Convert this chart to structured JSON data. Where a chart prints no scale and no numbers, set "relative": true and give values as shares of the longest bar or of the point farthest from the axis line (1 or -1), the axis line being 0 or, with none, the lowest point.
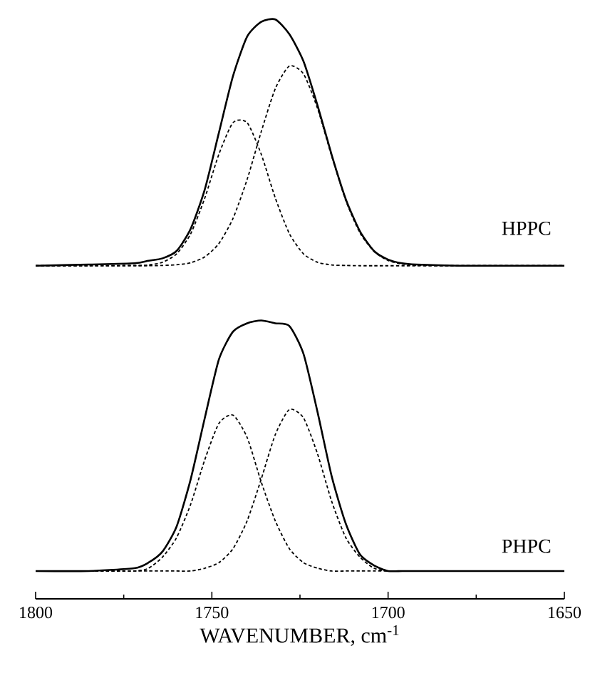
{
  "chart_data": [
    {
      "type": "line",
      "relative": true,
      "tick_labels": false,
      "xlim": [
        1800,
        1650
      ],
      "annotations": [
        "HPPC"
      ],
      "x": [
        1800,
        1785,
        1772,
        1768,
        1764,
        1760,
        1756,
        1752,
        1748,
        1744,
        1740,
        1736,
        1732,
        1728,
        1724,
        1720,
        1716,
        1712,
        1708,
        1704,
        1700,
        1696,
        1692,
        1680,
        1665,
        1650
      ],
      "series": [
        {
          "color": "#000000",
          "line_style": "solid",
          "values": [
            0,
            0.005,
            0.01,
            0.02,
            0.03,
            0.06,
            0.15,
            0.31,
            0.54,
            0.77,
            0.93,
            0.99,
            1.0,
            0.94,
            0.83,
            0.65,
            0.45,
            0.27,
            0.14,
            0.06,
            0.025,
            0.01,
            0.005,
            0,
            0,
            0
          ]
        },
        {
          "color": "#000000",
          "line_style": "dashed",
          "values": [
            0,
            0,
            0.001,
            0.003,
            0.014,
            0.048,
            0.13,
            0.275,
            0.453,
            0.581,
            0.581,
            0.453,
            0.275,
            0.13,
            0.048,
            0.014,
            0.003,
            0.001,
            0,
            0,
            0,
            0,
            0,
            0,
            0,
            0
          ]
        },
        {
          "color": "#000000",
          "line_style": "dashed",
          "values": [
            0,
            0,
            0,
            0,
            0.001,
            0.004,
            0.012,
            0.036,
            0.09,
            0.192,
            0.35,
            0.544,
            0.719,
            0.811,
            0.779,
            0.638,
            0.445,
            0.265,
            0.134,
            0.058,
            0.021,
            0.007,
            0.002,
            0,
            0,
            0
          ]
        }
      ]
    },
    {
      "type": "line",
      "relative": true,
      "tick_labels": "x",
      "xlim": [
        1800,
        1650
      ],
      "xlabel": "WAVENUMBER, cm$^{-1}$",
      "annotations": [
        "PHPC"
      ],
      "xticks": [
        1800,
        1750,
        1700,
        1650
      ],
      "x": [
        1800,
        1785,
        1772,
        1768,
        1764,
        1760,
        1756,
        1752,
        1748,
        1744,
        1740,
        1736,
        1732,
        1728,
        1724,
        1720,
        1716,
        1712,
        1708,
        1704,
        1700,
        1696,
        1692,
        1680,
        1665,
        1650
      ],
      "series": [
        {
          "color": "#000000",
          "line_style": "solid",
          "values": [
            0.1,
            0.1,
            0.11,
            0.13,
            0.17,
            0.26,
            0.43,
            0.65,
            0.86,
            0.96,
            0.99,
            1.0,
            0.99,
            0.98,
            0.88,
            0.67,
            0.44,
            0.27,
            0.16,
            0.12,
            0.1,
            0.1,
            0.1,
            0.1,
            0.1,
            0.1
          ]
        },
        {
          "color": "#000000",
          "line_style": "dashed",
          "values": [
            0.1,
            0.1,
            0.1,
            0.11,
            0.15,
            0.22,
            0.34,
            0.5,
            0.63,
            0.66,
            0.58,
            0.42,
            0.28,
            0.18,
            0.13,
            0.11,
            0.1,
            0.1,
            0.1,
            0.1,
            0.1,
            0.1,
            0.1,
            0.1,
            0.1,
            0.1
          ]
        },
        {
          "color": "#000000",
          "line_style": "dashed",
          "values": [
            0.1,
            0.1,
            0.1,
            0.1,
            0.1,
            0.1,
            0.1,
            0.11,
            0.13,
            0.18,
            0.28,
            0.43,
            0.59,
            0.68,
            0.65,
            0.52,
            0.35,
            0.22,
            0.15,
            0.11,
            0.1,
            0.1,
            0.1,
            0.1,
            0.1,
            0.1
          ]
        }
      ]
    }
  ]
}
